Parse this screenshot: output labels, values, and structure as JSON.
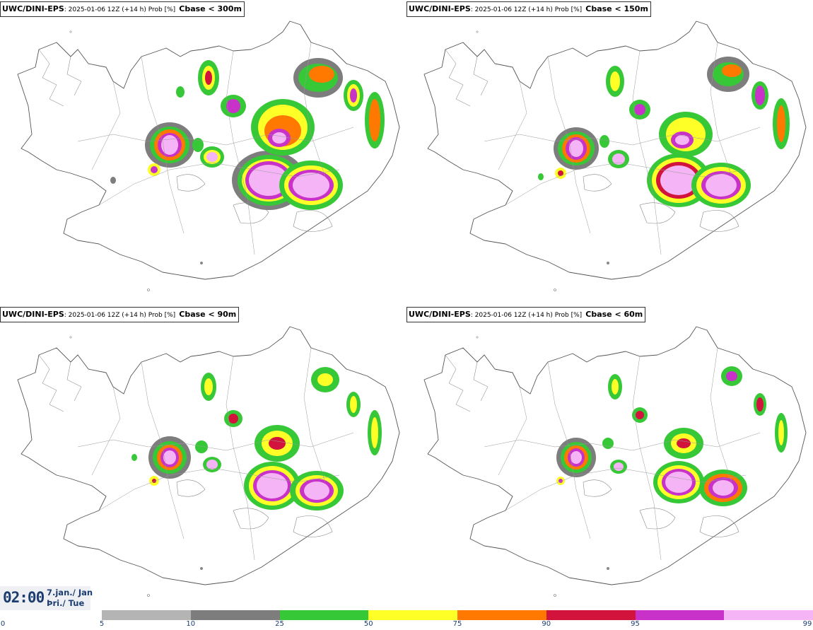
{
  "panels": [
    {
      "model": "UWC/DINI-EPS",
      "info": ": 2025-01-06 12Z (+14 h) Prob [%]",
      "variable": "Cbase < 300m"
    },
    {
      "model": "UWC/DINI-EPS",
      "info": ": 2025-01-06 12Z (+14 h) Prob [%]",
      "variable": "Cbase < 150m"
    },
    {
      "model": "UWC/DINI-EPS",
      "info": ": 2025-01-06 12Z (+14 h) Prob [%]",
      "variable": "Cbase < 90m"
    },
    {
      "model": "UWC/DINI-EPS",
      "info": ": 2025-01-06 12Z (+14 h) Prob [%]",
      "variable": "Cbase < 60m"
    }
  ],
  "valid_time": {
    "clock": "02:00",
    "date_line1": "7.jan./ Jan",
    "date_line2": "Þri./ Tue"
  },
  "colorbar": {
    "ticks": [
      "0",
      "5",
      "10",
      "25",
      "50",
      "75",
      "90",
      "95",
      "99"
    ],
    "colors": [
      "#b4b4b4",
      "#7d7d7d",
      "#37c837",
      "#ffff28",
      "#ff7800",
      "#d2143c",
      "#c832c8",
      "#f5b4f5"
    ]
  }
}
